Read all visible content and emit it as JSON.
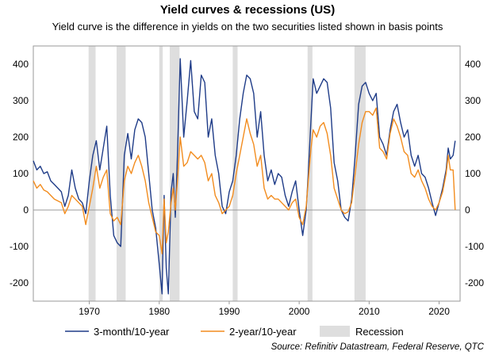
{
  "chart_data": {
    "type": "line",
    "title": "Yield curves & recessions (US)",
    "subtitle": "Yield curve is the difference in yields on the two securities listed shown in basis points",
    "xlabel": "",
    "ylabel": "",
    "xlim": [
      1962,
      2023
    ],
    "ylim": [
      -250,
      450
    ],
    "y_ticks": [
      -200,
      -100,
      0,
      100,
      200,
      300,
      400
    ],
    "x_ticks": [
      1970,
      1980,
      1990,
      2000,
      2010,
      2020
    ],
    "grid": false,
    "legend_position": "bottom",
    "recessions": [
      [
        1969.9,
        1970.9
      ],
      [
        1973.9,
        1975.2
      ],
      [
        1980.0,
        1980.5
      ],
      [
        1981.5,
        1982.9
      ],
      [
        1990.5,
        1991.2
      ],
      [
        2001.2,
        2001.9
      ],
      [
        2007.9,
        2009.5
      ]
    ],
    "recession_label": "Recession",
    "series": [
      {
        "name": "3-month/10-year",
        "color": "#1f3c88",
        "points": [
          [
            1962,
            135
          ],
          [
            1962.5,
            110
          ],
          [
            1963,
            120
          ],
          [
            1963.5,
            100
          ],
          [
            1964,
            105
          ],
          [
            1964.5,
            80
          ],
          [
            1965,
            70
          ],
          [
            1965.5,
            60
          ],
          [
            1966,
            50
          ],
          [
            1966.5,
            10
          ],
          [
            1967,
            40
          ],
          [
            1967.5,
            110
          ],
          [
            1968,
            60
          ],
          [
            1968.5,
            30
          ],
          [
            1969,
            20
          ],
          [
            1969.5,
            -10
          ],
          [
            1970,
            80
          ],
          [
            1970.5,
            150
          ],
          [
            1971,
            190
          ],
          [
            1971.5,
            110
          ],
          [
            1972,
            170
          ],
          [
            1972.5,
            230
          ],
          [
            1973,
            40
          ],
          [
            1973.5,
            -70
          ],
          [
            1974,
            -90
          ],
          [
            1974.5,
            -100
          ],
          [
            1975,
            150
          ],
          [
            1975.5,
            210
          ],
          [
            1976,
            140
          ],
          [
            1976.5,
            220
          ],
          [
            1977,
            250
          ],
          [
            1977.5,
            240
          ],
          [
            1978,
            200
          ],
          [
            1978.5,
            100
          ],
          [
            1979,
            0
          ],
          [
            1979.5,
            -50
          ],
          [
            1980,
            -150
          ],
          [
            1980.4,
            -230
          ],
          [
            1980.7,
            40
          ],
          [
            1981,
            -160
          ],
          [
            1981.3,
            -230
          ],
          [
            1981.7,
            50
          ],
          [
            1982,
            100
          ],
          [
            1982.3,
            -20
          ],
          [
            1982.6,
            150
          ],
          [
            1983,
            415
          ],
          [
            1983.5,
            200
          ],
          [
            1984,
            300
          ],
          [
            1984.5,
            410
          ],
          [
            1985,
            270
          ],
          [
            1985.5,
            250
          ],
          [
            1986,
            370
          ],
          [
            1986.5,
            350
          ],
          [
            1987,
            200
          ],
          [
            1987.5,
            250
          ],
          [
            1988,
            150
          ],
          [
            1988.5,
            100
          ],
          [
            1989,
            10
          ],
          [
            1989.5,
            -10
          ],
          [
            1990,
            50
          ],
          [
            1990.5,
            80
          ],
          [
            1991,
            150
          ],
          [
            1991.5,
            250
          ],
          [
            1992,
            320
          ],
          [
            1992.5,
            370
          ],
          [
            1993,
            360
          ],
          [
            1993.5,
            320
          ],
          [
            1994,
            200
          ],
          [
            1994.5,
            270
          ],
          [
            1995,
            150
          ],
          [
            1995.5,
            80
          ],
          [
            1996,
            110
          ],
          [
            1996.5,
            70
          ],
          [
            1997,
            100
          ],
          [
            1997.5,
            90
          ],
          [
            1998,
            40
          ],
          [
            1998.5,
            10
          ],
          [
            1999,
            50
          ],
          [
            1999.5,
            80
          ],
          [
            2000,
            0
          ],
          [
            2000.5,
            -70
          ],
          [
            2001,
            0
          ],
          [
            2001.3,
            100
          ],
          [
            2001.7,
            250
          ],
          [
            2002,
            360
          ],
          [
            2002.5,
            320
          ],
          [
            2003,
            340
          ],
          [
            2003.5,
            360
          ],
          [
            2004,
            350
          ],
          [
            2004.5,
            280
          ],
          [
            2005,
            130
          ],
          [
            2005.5,
            80
          ],
          [
            2006,
            0
          ],
          [
            2006.5,
            -20
          ],
          [
            2007,
            -30
          ],
          [
            2007.5,
            30
          ],
          [
            2008,
            150
          ],
          [
            2008.5,
            290
          ],
          [
            2009,
            340
          ],
          [
            2009.5,
            350
          ],
          [
            2010,
            320
          ],
          [
            2010.5,
            300
          ],
          [
            2011,
            320
          ],
          [
            2011.5,
            200
          ],
          [
            2012,
            180
          ],
          [
            2012.5,
            150
          ],
          [
            2013,
            220
          ],
          [
            2013.5,
            270
          ],
          [
            2014,
            290
          ],
          [
            2014.5,
            240
          ],
          [
            2015,
            200
          ],
          [
            2015.5,
            220
          ],
          [
            2016,
            150
          ],
          [
            2016.5,
            120
          ],
          [
            2017,
            150
          ],
          [
            2017.5,
            100
          ],
          [
            2018,
            90
          ],
          [
            2018.5,
            60
          ],
          [
            2019,
            20
          ],
          [
            2019.5,
            -15
          ],
          [
            2020,
            20
          ],
          [
            2020.5,
            60
          ],
          [
            2021,
            110
          ],
          [
            2021.3,
            170
          ],
          [
            2021.6,
            140
          ],
          [
            2022,
            150
          ],
          [
            2022.3,
            190
          ]
        ]
      },
      {
        "name": "2-year/10-year",
        "color": "#f28c1e",
        "points": [
          [
            1962,
            80
          ],
          [
            1962.5,
            60
          ],
          [
            1963,
            70
          ],
          [
            1963.5,
            55
          ],
          [
            1964,
            50
          ],
          [
            1964.5,
            40
          ],
          [
            1965,
            30
          ],
          [
            1965.5,
            25
          ],
          [
            1966,
            20
          ],
          [
            1966.5,
            -10
          ],
          [
            1967,
            10
          ],
          [
            1967.5,
            40
          ],
          [
            1968,
            30
          ],
          [
            1968.5,
            20
          ],
          [
            1969,
            10
          ],
          [
            1969.5,
            -40
          ],
          [
            1970,
            10
          ],
          [
            1970.5,
            60
          ],
          [
            1971,
            120
          ],
          [
            1971.5,
            60
          ],
          [
            1972,
            90
          ],
          [
            1972.5,
            110
          ],
          [
            1973,
            -10
          ],
          [
            1973.5,
            -30
          ],
          [
            1974,
            -20
          ],
          [
            1974.5,
            -40
          ],
          [
            1975,
            80
          ],
          [
            1975.5,
            120
          ],
          [
            1976,
            100
          ],
          [
            1976.5,
            130
          ],
          [
            1977,
            150
          ],
          [
            1977.5,
            120
          ],
          [
            1978,
            80
          ],
          [
            1978.5,
            20
          ],
          [
            1979,
            -20
          ],
          [
            1979.5,
            -60
          ],
          [
            1980,
            -70
          ],
          [
            1980.4,
            -120
          ],
          [
            1980.7,
            30
          ],
          [
            1981,
            -90
          ],
          [
            1981.3,
            -60
          ],
          [
            1981.7,
            20
          ],
          [
            1982,
            60
          ],
          [
            1982.3,
            0
          ],
          [
            1982.6,
            80
          ],
          [
            1983,
            200
          ],
          [
            1983.5,
            120
          ],
          [
            1984,
            130
          ],
          [
            1984.5,
            160
          ],
          [
            1985,
            150
          ],
          [
            1985.5,
            140
          ],
          [
            1986,
            150
          ],
          [
            1986.5,
            130
          ],
          [
            1987,
            80
          ],
          [
            1987.5,
            100
          ],
          [
            1988,
            40
          ],
          [
            1988.5,
            20
          ],
          [
            1989,
            -10
          ],
          [
            1989.5,
            0
          ],
          [
            1990,
            10
          ],
          [
            1990.5,
            40
          ],
          [
            1991,
            100
          ],
          [
            1991.5,
            150
          ],
          [
            1992,
            200
          ],
          [
            1992.5,
            250
          ],
          [
            1993,
            210
          ],
          [
            1993.5,
            180
          ],
          [
            1994,
            120
          ],
          [
            1994.5,
            150
          ],
          [
            1995,
            60
          ],
          [
            1995.5,
            30
          ],
          [
            1996,
            40
          ],
          [
            1996.5,
            30
          ],
          [
            1997,
            30
          ],
          [
            1997.5,
            20
          ],
          [
            1998,
            10
          ],
          [
            1998.5,
            0
          ],
          [
            1999,
            20
          ],
          [
            1999.5,
            30
          ],
          [
            2000,
            -20
          ],
          [
            2000.5,
            -40
          ],
          [
            2001,
            10
          ],
          [
            2001.3,
            80
          ],
          [
            2001.7,
            170
          ],
          [
            2002,
            220
          ],
          [
            2002.5,
            200
          ],
          [
            2003,
            230
          ],
          [
            2003.5,
            240
          ],
          [
            2004,
            210
          ],
          [
            2004.5,
            150
          ],
          [
            2005,
            60
          ],
          [
            2005.5,
            30
          ],
          [
            2006,
            0
          ],
          [
            2006.5,
            -10
          ],
          [
            2007,
            -5
          ],
          [
            2007.5,
            20
          ],
          [
            2008,
            100
          ],
          [
            2008.5,
            180
          ],
          [
            2009,
            240
          ],
          [
            2009.5,
            270
          ],
          [
            2010,
            270
          ],
          [
            2010.5,
            260
          ],
          [
            2011,
            280
          ],
          [
            2011.5,
            170
          ],
          [
            2012,
            160
          ],
          [
            2012.5,
            140
          ],
          [
            2013,
            210
          ],
          [
            2013.5,
            250
          ],
          [
            2014,
            230
          ],
          [
            2014.5,
            200
          ],
          [
            2015,
            160
          ],
          [
            2015.5,
            150
          ],
          [
            2016,
            100
          ],
          [
            2016.5,
            90
          ],
          [
            2017,
            110
          ],
          [
            2017.5,
            80
          ],
          [
            2018,
            60
          ],
          [
            2018.5,
            30
          ],
          [
            2019,
            10
          ],
          [
            2019.5,
            0
          ],
          [
            2020,
            20
          ],
          [
            2020.5,
            50
          ],
          [
            2021,
            100
          ],
          [
            2021.3,
            150
          ],
          [
            2021.6,
            110
          ],
          [
            2022,
            110
          ],
          [
            2022.3,
            0
          ]
        ]
      }
    ]
  },
  "source": "Source: Refinitiv Datastream, Federal Reserve, QTC"
}
